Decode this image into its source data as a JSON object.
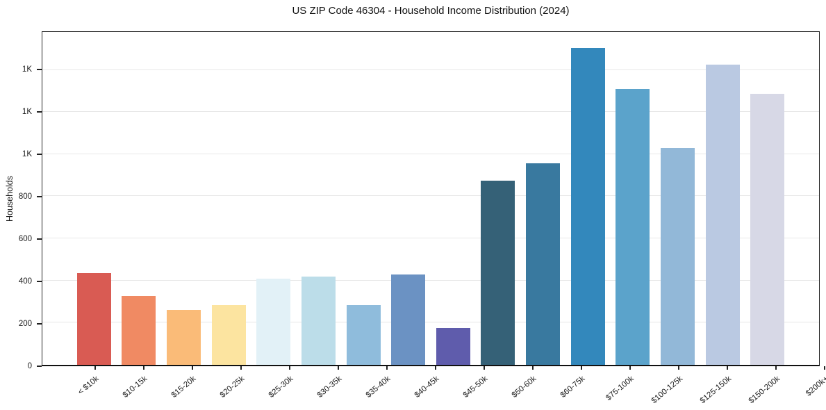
{
  "title": "US ZIP Code 46304 - Household Income Distribution (2024)",
  "y_axis_label": "Households",
  "chart_data": {
    "type": "bar",
    "title": "US ZIP Code 46304 - Household Income Distribution (2024)",
    "xlabel": "",
    "ylabel": "Households",
    "ylim": [
      0,
      1580
    ],
    "grid": "horizontal-only",
    "legend": "none",
    "categories": [
      "< $10k",
      "$10-15k",
      "$15-20k",
      "$20-25k",
      "$25-30k",
      "$30-35k",
      "$35-40k",
      "$40-45k",
      "$45-50k",
      "$50-60k",
      "$60-75k",
      "$75-100k",
      "$100-125k",
      "$125-150k",
      "$150-200k",
      "$200k+"
    ],
    "values": [
      435,
      325,
      260,
      285,
      410,
      420,
      285,
      430,
      175,
      875,
      955,
      1505,
      1310,
      1030,
      1425,
      1285
    ],
    "bar_colors": [
      "#d95b53",
      "#f08a63",
      "#fabb78",
      "#fce4a0",
      "#e2f1f7",
      "#bcdde9",
      "#8fbcdc",
      "#6b92c3",
      "#5f5cac",
      "#356177",
      "#39799f",
      "#3388bc",
      "#5ba3cb",
      "#92b8d8",
      "#bac9e2",
      "#d7d8e6"
    ],
    "y_ticks": [
      {
        "value": 0,
        "label": "0"
      },
      {
        "value": 200,
        "label": "200"
      },
      {
        "value": 400,
        "label": "400"
      },
      {
        "value": 600,
        "label": "600"
      },
      {
        "value": 800,
        "label": "800"
      },
      {
        "value": 1000,
        "label": "1K"
      },
      {
        "value": 1200,
        "label": "1K"
      },
      {
        "value": 1400,
        "label": "1K"
      }
    ]
  },
  "colors": {
    "background": "#ffffff",
    "gridline": "#e7e7e7",
    "spine": "#222222",
    "text": "#1a1a1a"
  }
}
